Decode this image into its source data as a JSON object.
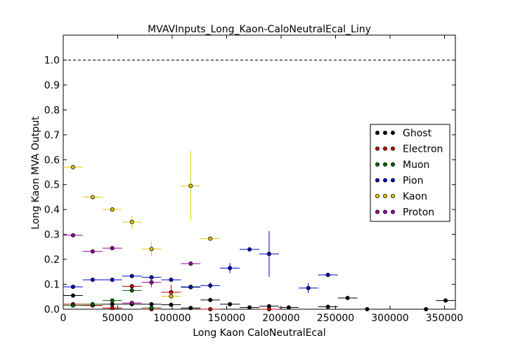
{
  "chart_data": {
    "type": "scatter",
    "title": "MVAVInputs_Long_Kaon-CaloNeutralEcal_Liny",
    "xlabel": "Long Kaon CaloNeutralEcal",
    "ylabel": "Long Kaon MVA Output",
    "xlim": [
      0,
      360000
    ],
    "ylim": [
      0,
      1.1
    ],
    "x_ticks": [
      0,
      50000,
      100000,
      150000,
      200000,
      250000,
      300000,
      350000
    ],
    "x_tick_labels": [
      "0",
      "50000",
      "100000",
      "150000",
      "200000",
      "250000",
      "300000",
      "350000"
    ],
    "y_ticks": [
      0.0,
      0.1,
      0.2,
      0.3,
      0.4,
      0.5,
      0.6,
      0.7,
      0.8,
      0.9,
      1.0
    ],
    "y_tick_labels": [
      "0.0",
      "0.1",
      "0.2",
      "0.3",
      "0.4",
      "0.5",
      "0.6",
      "0.7",
      "0.8",
      "0.9",
      "1.0"
    ],
    "reference_line_y": 1.0,
    "legend_position": "right",
    "x_error_halfwidth": 9000,
    "series": [
      {
        "name": "Ghost",
        "color": "#000000",
        "points": [
          {
            "x": 9000,
            "y": 0.055,
            "yerr": 0.004
          },
          {
            "x": 27000,
            "y": 0.015,
            "yerr": 0.003
          },
          {
            "x": 45000,
            "y": 0.02,
            "yerr": 0.003
          },
          {
            "x": 63000,
            "y": 0.02,
            "yerr": 0.003
          },
          {
            "x": 81000,
            "y": 0.02,
            "yerr": 0.003
          },
          {
            "x": 99000,
            "y": 0.018,
            "yerr": 0.003
          },
          {
            "x": 117000,
            "y": 0.005,
            "yerr": 0.002
          },
          {
            "x": 135000,
            "y": 0.037,
            "yerr": 0.004
          },
          {
            "x": 153000,
            "y": 0.02,
            "yerr": 0.003
          },
          {
            "x": 171000,
            "y": 0.007,
            "yerr": 0.002
          },
          {
            "x": 189000,
            "y": 0.012,
            "yerr": 0.003
          },
          {
            "x": 207000,
            "y": 0.007,
            "yerr": 0.002
          },
          {
            "x": 243000,
            "y": 0.01,
            "yerr": 0.003
          },
          {
            "x": 261000,
            "y": 0.045,
            "yerr": 0.004
          },
          {
            "x": 279000,
            "y": 0.0,
            "yerr": 0.001
          },
          {
            "x": 333000,
            "y": 0.0,
            "yerr": 0.001
          },
          {
            "x": 351000,
            "y": 0.035,
            "yerr": 0.004
          }
        ]
      },
      {
        "name": "Electron",
        "color": "#cc0000",
        "points": [
          {
            "x": 9000,
            "y": 0.02,
            "yerr": 0.003
          },
          {
            "x": 27000,
            "y": 0.015,
            "yerr": 0.003
          },
          {
            "x": 45000,
            "y": 0.005,
            "yerr": 0.002
          },
          {
            "x": 63000,
            "y": 0.092,
            "yerr": 0.01
          },
          {
            "x": 81000,
            "y": 0.0,
            "yerr": 0.001
          },
          {
            "x": 99000,
            "y": 0.068,
            "yerr": 0.03
          },
          {
            "x": 135000,
            "y": 0.0,
            "yerr": 0.001
          },
          {
            "x": 189000,
            "y": 0.0,
            "yerr": 0.001
          }
        ]
      },
      {
        "name": "Muon",
        "color": "#006600",
        "points": [
          {
            "x": 9000,
            "y": 0.015,
            "yerr": 0.003
          },
          {
            "x": 27000,
            "y": 0.02,
            "yerr": 0.003
          },
          {
            "x": 45000,
            "y": 0.035,
            "yerr": 0.004
          },
          {
            "x": 63000,
            "y": 0.075,
            "yerr": 0.008
          },
          {
            "x": 81000,
            "y": 0.005,
            "yerr": 0.002
          },
          {
            "x": 117000,
            "y": 0.09,
            "yerr": 0.005
          }
        ]
      },
      {
        "name": "Pion",
        "color": "#0000cc",
        "points": [
          {
            "x": 9000,
            "y": 0.09,
            "yerr": 0.003
          },
          {
            "x": 27000,
            "y": 0.118,
            "yerr": 0.003
          },
          {
            "x": 45000,
            "y": 0.118,
            "yerr": 0.003
          },
          {
            "x": 63000,
            "y": 0.133,
            "yerr": 0.003
          },
          {
            "x": 81000,
            "y": 0.128,
            "yerr": 0.004
          },
          {
            "x": 99000,
            "y": 0.118,
            "yerr": 0.004
          },
          {
            "x": 117000,
            "y": 0.088,
            "yerr": 0.005
          },
          {
            "x": 135000,
            "y": 0.095,
            "yerr": 0.012
          },
          {
            "x": 153000,
            "y": 0.165,
            "yerr": 0.02
          },
          {
            "x": 171000,
            "y": 0.24,
            "yerr": 0.005
          },
          {
            "x": 189000,
            "y": 0.222,
            "yerr": 0.092
          },
          {
            "x": 225000,
            "y": 0.085,
            "yerr": 0.02
          },
          {
            "x": 243000,
            "y": 0.138,
            "yerr": 0.004
          }
        ]
      },
      {
        "name": "Kaon",
        "color": "#e6c800",
        "points": [
          {
            "x": 9000,
            "y": 0.57,
            "yerr": 0.006
          },
          {
            "x": 27000,
            "y": 0.45,
            "yerr": 0.007
          },
          {
            "x": 45000,
            "y": 0.4,
            "yerr": 0.01
          },
          {
            "x": 63000,
            "y": 0.35,
            "yerr": 0.025
          },
          {
            "x": 81000,
            "y": 0.242,
            "yerr": 0.03
          },
          {
            "x": 99000,
            "y": 0.052,
            "yerr": 0.015
          },
          {
            "x": 117000,
            "y": 0.495,
            "yerr": 0.14
          },
          {
            "x": 135000,
            "y": 0.283,
            "yerr": 0.006
          }
        ]
      },
      {
        "name": "Proton",
        "color": "#990099",
        "points": [
          {
            "x": 9000,
            "y": 0.297,
            "yerr": 0.004
          },
          {
            "x": 27000,
            "y": 0.232,
            "yerr": 0.004
          },
          {
            "x": 45000,
            "y": 0.245,
            "yerr": 0.006
          },
          {
            "x": 63000,
            "y": 0.025,
            "yerr": 0.006
          },
          {
            "x": 81000,
            "y": 0.108,
            "yerr": 0.02
          },
          {
            "x": 117000,
            "y": 0.183,
            "yerr": 0.006
          }
        ]
      }
    ]
  }
}
